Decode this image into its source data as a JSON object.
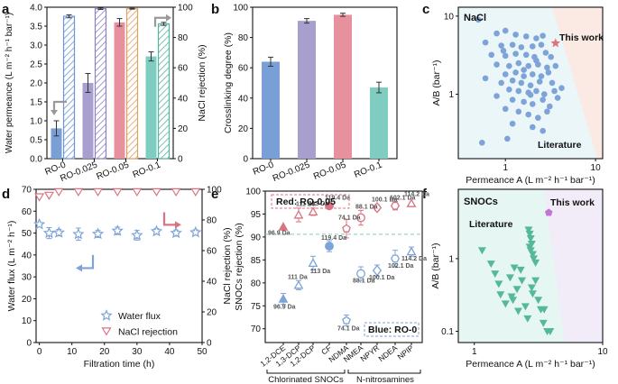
{
  "colors": {
    "ro0": "#7a9fd6",
    "ro0025": "#a99fcf",
    "ro005": "#e7919f",
    "ro01": "#7fcdc0",
    "rej_ro0": "#6b95d3",
    "rej_ro0025": "#8c80c4",
    "rej_ro005": "#e0a060",
    "rej_ro01": "#56b39f",
    "nacl_fill": "#fbe9e4",
    "nacl_lit": "#eaf6f8",
    "snoc_fill": "#f1ecf8",
    "snoc_lit": "#e6f6f2",
    "lit_blue": "#7ea3d8",
    "this_red": "#e3707d",
    "snoc_green": "#55b89b",
    "this_purple": "#c375d4",
    "flux": "#7ea3d8",
    "rej_red": "#d97383",
    "green_dash": "#7ccfb7"
  },
  "labels": {
    "a": "a",
    "b": "b",
    "c": "c",
    "d": "d",
    "e": "e",
    "f": "f"
  },
  "chart_data": [
    {
      "panel": "a",
      "type": "bar",
      "categories": [
        "RO-0",
        "RO-0.025",
        "RO-0.05",
        "RO-0.1"
      ],
      "series": [
        {
          "name": "Water permeance",
          "values": [
            0.8,
            2.0,
            3.6,
            2.7
          ],
          "errors": [
            0.2,
            0.25,
            0.1,
            0.12
          ]
        },
        {
          "name": "NaCl rejection",
          "values": [
            94,
            99,
            99,
            89
          ],
          "errors": [
            1,
            0.5,
            0.3,
            1
          ]
        }
      ],
      "ylabel": "Water permeance (L m⁻² h⁻¹ bar⁻¹)",
      "ylim": [
        0,
        4
      ],
      "y_ticks": [
        "0.0",
        "0.5",
        "1.0",
        "1.5",
        "2.0",
        "2.5",
        "3.0",
        "3.5",
        "4.0"
      ],
      "y2label": "NaCl rejection (%)",
      "y2lim": [
        0,
        100
      ],
      "y2_ticks": [
        "0",
        "20",
        "40",
        "60",
        "80",
        "100"
      ]
    },
    {
      "panel": "b",
      "type": "bar",
      "categories": [
        "RO-0",
        "RO-0.025",
        "RO-0.05",
        "RO-0.1"
      ],
      "values": [
        64,
        91,
        95,
        47
      ],
      "errors": [
        3,
        1.5,
        1,
        3.5
      ],
      "ylabel": "Crosslinking degree (%)",
      "ylim": [
        0,
        100
      ],
      "y_ticks": [
        "0",
        "20",
        "40",
        "60",
        "80",
        "100"
      ]
    },
    {
      "panel": "c",
      "type": "scatter",
      "title": "NaCl",
      "xlabel": "Permeance A (L m⁻² h⁻¹ bar⁻¹)",
      "ylabel": "A/B (bar⁻¹)",
      "xlim": [
        0.3,
        12
      ],
      "ylim": [
        0.15,
        13
      ],
      "log": true,
      "x_ticks": [
        "1",
        "10"
      ],
      "y_ticks": [
        "1",
        "10"
      ],
      "legend": [
        "This work",
        "Literature"
      ],
      "this_work": {
        "x": 3.6,
        "y": 4.5
      },
      "literature": [
        [
          0.5,
          9
        ],
        [
          0.8,
          6
        ],
        [
          1.0,
          6.5
        ],
        [
          1.3,
          5.8
        ],
        [
          1.7,
          5.5
        ],
        [
          2.2,
          5.2
        ],
        [
          2.6,
          5.6
        ],
        [
          0.6,
          4.6
        ],
        [
          0.9,
          4.2
        ],
        [
          1.2,
          4.3
        ],
        [
          1.5,
          4.0
        ],
        [
          2.0,
          4.1
        ],
        [
          2.5,
          4.3
        ],
        [
          0.7,
          3.2
        ],
        [
          1.0,
          3.1
        ],
        [
          1.3,
          3.3
        ],
        [
          1.7,
          3.2
        ],
        [
          2.1,
          3.0
        ],
        [
          2.8,
          3.4
        ],
        [
          3.2,
          3.0
        ],
        [
          0.8,
          2.4
        ],
        [
          1.1,
          2.3
        ],
        [
          1.4,
          2.5
        ],
        [
          1.8,
          2.3
        ],
        [
          2.3,
          2.4
        ],
        [
          2.9,
          2.2
        ],
        [
          3.6,
          2.3
        ],
        [
          1.0,
          1.8
        ],
        [
          1.3,
          1.9
        ],
        [
          1.6,
          1.7
        ],
        [
          2.0,
          1.8
        ],
        [
          2.5,
          1.7
        ],
        [
          3.0,
          1.9
        ],
        [
          0.6,
          1.6
        ],
        [
          0.9,
          1.4
        ],
        [
          1.2,
          1.5
        ],
        [
          1.5,
          1.4
        ],
        [
          1.9,
          1.3
        ],
        [
          2.4,
          1.45
        ],
        [
          3.3,
          1.4
        ],
        [
          1.1,
          1.15
        ],
        [
          1.4,
          1.1
        ],
        [
          1.8,
          1.05
        ],
        [
          2.2,
          1.1
        ],
        [
          2.7,
          1.0
        ],
        [
          3.5,
          1.1
        ],
        [
          4.2,
          1.2
        ],
        [
          0.8,
          0.95
        ],
        [
          1.2,
          0.85
        ],
        [
          1.6,
          0.8
        ],
        [
          2.0,
          0.75
        ],
        [
          2.6,
          0.85
        ],
        [
          3.1,
          0.7
        ],
        [
          1.0,
          0.65
        ],
        [
          1.4,
          0.6
        ],
        [
          1.8,
          0.55
        ],
        [
          2.3,
          0.5
        ],
        [
          2.9,
          0.6
        ],
        [
          1.2,
          0.42
        ],
        [
          2.0,
          0.38
        ],
        [
          2.6,
          0.34
        ],
        [
          0.55,
          0.24
        ],
        [
          1.05,
          0.27
        ],
        [
          3.8,
          0.9
        ],
        [
          1.6,
          2.05
        ],
        [
          2.2,
          2.7
        ],
        [
          0.95,
          3.6
        ],
        [
          1.9,
          0.98
        ]
      ]
    },
    {
      "panel": "d",
      "type": "scatter",
      "xlabel": "Filtration time (h)",
      "ylabel": "Water flux (L m⁻² h⁻¹)",
      "y2label": "NaCl rejection (%)",
      "xlim": [
        -1,
        50
      ],
      "ylim": [
        0,
        70
      ],
      "y2lim": [
        0,
        100
      ],
      "x_ticks": [
        "0",
        "10",
        "20",
        "30",
        "40",
        "50"
      ],
      "y_ticks": [
        "0",
        "10",
        "20",
        "30",
        "40",
        "50",
        "60",
        "70"
      ],
      "y2_ticks": [
        "0",
        "20",
        "40",
        "60",
        "80",
        "100"
      ],
      "x": [
        0,
        3,
        6,
        12,
        18,
        24,
        30,
        36,
        42,
        48
      ],
      "series": [
        {
          "name": "Water flux",
          "values": [
            54,
            50,
            50.2,
            49.5,
            49.6,
            51,
            49,
            50.8,
            50,
            50.3
          ],
          "errors": [
            0,
            2.5,
            1.5,
            2.8,
            1.6,
            1.7,
            2.2,
            1.3,
            1.4,
            1.2
          ]
        },
        {
          "name": "NaCl rejection",
          "values": [
            95,
            96,
            98.3,
            98.3,
            98.3,
            98.3,
            98.3,
            98.3,
            98.3,
            98.3
          ]
        }
      ]
    },
    {
      "panel": "e",
      "type": "scatter",
      "ylabel": "SNOCs rejection (%)",
      "ylim": [
        67,
        100
      ],
      "y_ticks": [
        "70",
        "75",
        "80",
        "85",
        "90",
        "95",
        "100"
      ],
      "categories": [
        "1,2-DCE",
        "1,3-DCP",
        "1,2-DCP",
        "CF",
        "NDMA",
        "NMEA",
        "NPYR",
        "NDEA",
        "NPIP"
      ],
      "groups": [
        "Chlorinated SNOCs",
        "N-nitrosamines"
      ],
      "legend": [
        "Red: RO-0.05",
        "Blue: RO-0"
      ],
      "mass_labels": [
        "96.9 Da",
        "111 Da",
        "113 Da",
        "119.4 Da",
        "74.1 Da",
        "88.1 Da",
        "100.1 Da",
        "102.1 Da",
        "114.2 Da"
      ],
      "series": [
        {
          "name": "RO-0.05",
          "values": [
            92.2,
            94.8,
            95.5,
            96.8,
            91.8,
            94.2,
            96.4,
            96.8,
            97.3
          ],
          "errors": [
            0,
            1.5,
            0.8,
            0,
            2,
            1.6,
            0.6,
            0.9,
            0
          ]
        },
        {
          "name": "RO-0",
          "values": [
            76.5,
            79.5,
            84.3,
            88.0,
            71.8,
            82.0,
            82.7,
            85.3,
            86.8
          ],
          "errors": [
            1.2,
            1,
            1.5,
            1.2,
            1.2,
            1.5,
            1.2,
            1.8,
            1
          ]
        },
        {
          "name": "Threshold",
          "values": [
            90.6
          ]
        }
      ]
    },
    {
      "panel": "f",
      "type": "scatter",
      "title": "SNOCs",
      "xlabel": "Permeance A (L m⁻² h⁻¹ bar⁻¹)",
      "ylabel": "A/B (bar⁻¹)",
      "xlim": [
        0.75,
        10
      ],
      "ylim": [
        0.07,
        9
      ],
      "log": true,
      "x_ticks": [
        "1",
        "10"
      ],
      "y_ticks": [
        "0.1",
        "1"
      ],
      "legend": [
        "This work",
        "Literature"
      ],
      "this_work": {
        "x": 3.8,
        "y": 4.3
      },
      "literature": [
        [
          2.65,
          2.5
        ],
        [
          2.7,
          2.2
        ],
        [
          2.75,
          1.9
        ],
        [
          2.8,
          1.6
        ],
        [
          2.7,
          1.45
        ],
        [
          2.75,
          1.3
        ],
        [
          2.85,
          1.15
        ],
        [
          2.9,
          1.0
        ],
        [
          3.0,
          0.88
        ],
        [
          1.15,
          1.3
        ],
        [
          1.35,
          0.85
        ],
        [
          1.45,
          0.62
        ],
        [
          1.55,
          0.45
        ],
        [
          1.6,
          0.32
        ],
        [
          1.75,
          0.24
        ],
        [
          1.9,
          0.55
        ],
        [
          2.0,
          0.27
        ],
        [
          2.05,
          0.75
        ],
        [
          2.15,
          0.38
        ],
        [
          2.3,
          0.7
        ],
        [
          2.35,
          0.5
        ],
        [
          2.5,
          0.22
        ],
        [
          2.6,
          0.15
        ],
        [
          2.85,
          0.33
        ],
        [
          3.0,
          0.5
        ],
        [
          3.15,
          0.27
        ],
        [
          3.3,
          0.2
        ],
        [
          3.45,
          0.13
        ],
        [
          3.7,
          0.1
        ],
        [
          3.9,
          0.1
        ],
        [
          2.8,
          0.4
        ],
        [
          2.2,
          0.19
        ],
        [
          1.95,
          0.3
        ],
        [
          3.5,
          0.2
        ]
      ]
    }
  ]
}
